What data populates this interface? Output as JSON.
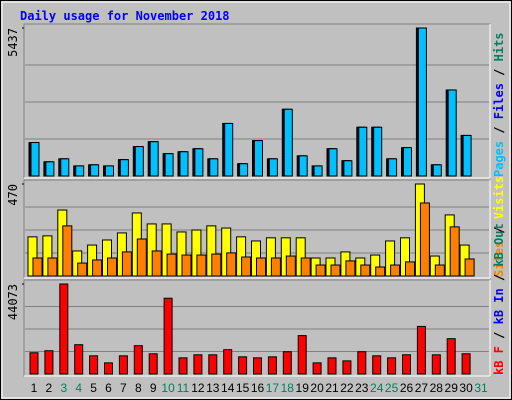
{
  "title": "Daily usage for November 2018",
  "legend_separator": " / ",
  "chart_data": [
    {
      "type": "bar",
      "ylim": [
        0,
        5437
      ],
      "yticks": [
        5437
      ],
      "series": [
        {
          "name": "Pages",
          "color": "#00c0ff",
          "values": [
            1230,
            520,
            630,
            370,
            410,
            370,
            600,
            1080,
            1260,
            820,
            890,
            1000,
            630,
            1930,
            450,
            1300,
            630,
            2450,
            740,
            370,
            1000,
            560,
            1790,
            1790,
            630,
            1040,
            5437,
            410,
            3160,
            1490,
            null
          ]
        },
        {
          "name": "Files",
          "color": "#0000ff",
          "values": [
            1230,
            520,
            630,
            370,
            410,
            370,
            600,
            1080,
            1260,
            820,
            890,
            1000,
            630,
            1930,
            450,
            1300,
            630,
            2450,
            740,
            370,
            1000,
            560,
            1790,
            1790,
            630,
            1040,
            5437,
            410,
            3160,
            1490,
            null
          ]
        },
        {
          "name": "Hits",
          "color": "#00805c",
          "values": [
            1230,
            520,
            630,
            370,
            410,
            370,
            600,
            1080,
            1260,
            820,
            890,
            1000,
            630,
            1930,
            450,
            1300,
            630,
            2450,
            740,
            370,
            1000,
            560,
            1790,
            1790,
            630,
            1040,
            5437,
            410,
            3160,
            1490,
            null
          ]
        }
      ]
    },
    {
      "type": "bar",
      "ylim": [
        0,
        470
      ],
      "yticks": [
        470
      ],
      "series": [
        {
          "name": "Sites",
          "color": "#ff8000",
          "values": [
            92,
            92,
            256,
            66,
            82,
            92,
            123,
            189,
            128,
            112,
            107,
            107,
            112,
            118,
            97,
            92,
            92,
            102,
            92,
            56,
            56,
            77,
            56,
            46,
            56,
            72,
            373,
            56,
            251,
            87,
            null
          ]
        },
        {
          "name": "Visits",
          "color": "#ffff00",
          "values": [
            200,
            205,
            337,
            128,
            158,
            184,
            220,
            322,
            266,
            266,
            225,
            235,
            256,
            245,
            200,
            179,
            195,
            195,
            195,
            92,
            92,
            123,
            92,
            107,
            179,
            195,
            470,
            102,
            312,
            158,
            null
          ]
        }
      ]
    },
    {
      "type": "bar",
      "ylim": [
        0,
        44073
      ],
      "yticks": [
        44073
      ],
      "categories": [
        "1",
        "2",
        "3",
        "4",
        "5",
        "6",
        "7",
        "8",
        "9",
        "10",
        "11",
        "12",
        "13",
        "14",
        "15",
        "16",
        "17",
        "18",
        "19",
        "20",
        "21",
        "22",
        "23",
        "24",
        "25",
        "26",
        "27",
        "28",
        "29",
        "30",
        "31"
      ],
      "category_colors": [
        "#000000",
        "#000000",
        "#00805c",
        "#00805c",
        "#000000",
        "#000000",
        "#000000",
        "#000000",
        "#000000",
        "#00805c",
        "#00805c",
        "#000000",
        "#000000",
        "#000000",
        "#000000",
        "#000000",
        "#00805c",
        "#00805c",
        "#000000",
        "#000000",
        "#000000",
        "#000000",
        "#000000",
        "#00805c",
        "#00805c",
        "#000000",
        "#000000",
        "#000000",
        "#000000",
        "#000000",
        "#00805c"
      ],
      "series": [
        {
          "name": "kB F",
          "color": "#ff0000",
          "values": [
            10400,
            11400,
            44073,
            14350,
            8900,
            5450,
            8900,
            13860,
            9900,
            37100,
            7900,
            9400,
            9400,
            11900,
            8400,
            7900,
            8400,
            10900,
            18800,
            5450,
            7900,
            6430,
            10900,
            8900,
            7900,
            9400,
            23300,
            9400,
            17300,
            9900,
            null
          ]
        },
        {
          "name": "kB In",
          "color": "#0000ff"
        },
        {
          "name": "kB Out",
          "color": "#00805c"
        }
      ]
    }
  ]
}
